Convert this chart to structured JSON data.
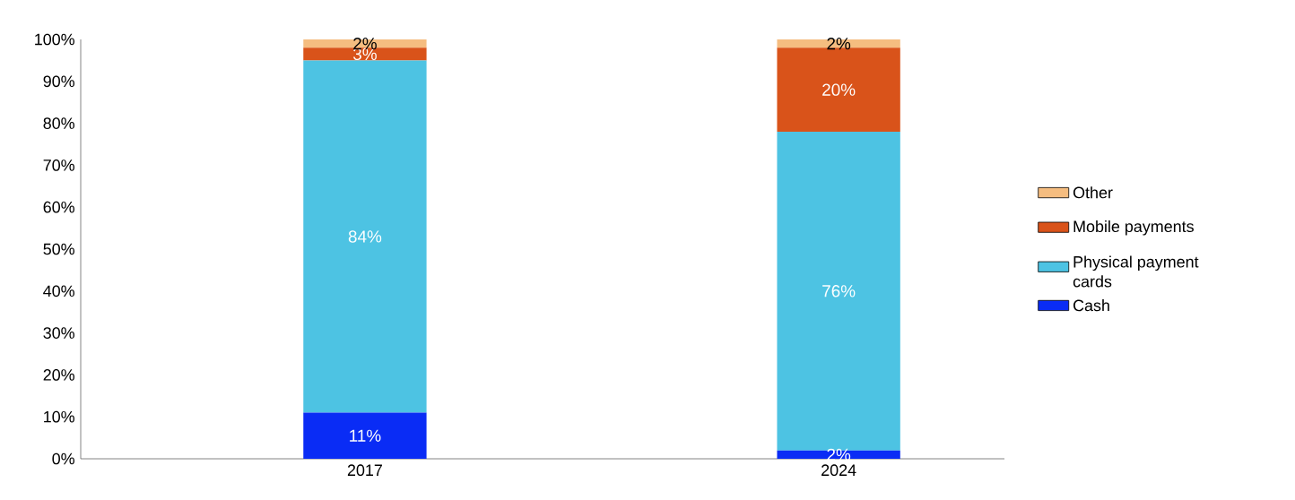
{
  "chart_data": {
    "type": "bar",
    "stacked": true,
    "categories": [
      "2017",
      "2024"
    ],
    "series": [
      {
        "name": "Cash",
        "color": "#0a2cf5",
        "values": [
          11,
          2
        ],
        "value_labels": [
          "11%",
          "2%"
        ]
      },
      {
        "name": "Physical payment cards",
        "color": "#4dc3e3",
        "values": [
          84,
          76
        ],
        "value_labels": [
          "84%",
          "76%"
        ]
      },
      {
        "name": "Mobile payments",
        "color": "#d9531a",
        "values": [
          3,
          20
        ],
        "value_labels": [
          "3%",
          "20%"
        ]
      },
      {
        "name": "Other",
        "color": "#f5bd80",
        "values": [
          2,
          2
        ],
        "value_labels": [
          "2%",
          "2%"
        ]
      }
    ],
    "ylim": [
      0,
      100
    ],
    "yticks": [
      {
        "value": 0,
        "label": "0%"
      },
      {
        "value": 10,
        "label": "10%"
      },
      {
        "value": 20,
        "label": "20%"
      },
      {
        "value": 30,
        "label": "30%"
      },
      {
        "value": 40,
        "label": "40%"
      },
      {
        "value": 50,
        "label": "50%"
      },
      {
        "value": 60,
        "label": "60%"
      },
      {
        "value": 70,
        "label": "70%"
      },
      {
        "value": 80,
        "label": "80%"
      },
      {
        "value": 90,
        "label": "90%"
      },
      {
        "value": 100,
        "label": "100%"
      }
    ],
    "grid": false,
    "legend": "right"
  }
}
